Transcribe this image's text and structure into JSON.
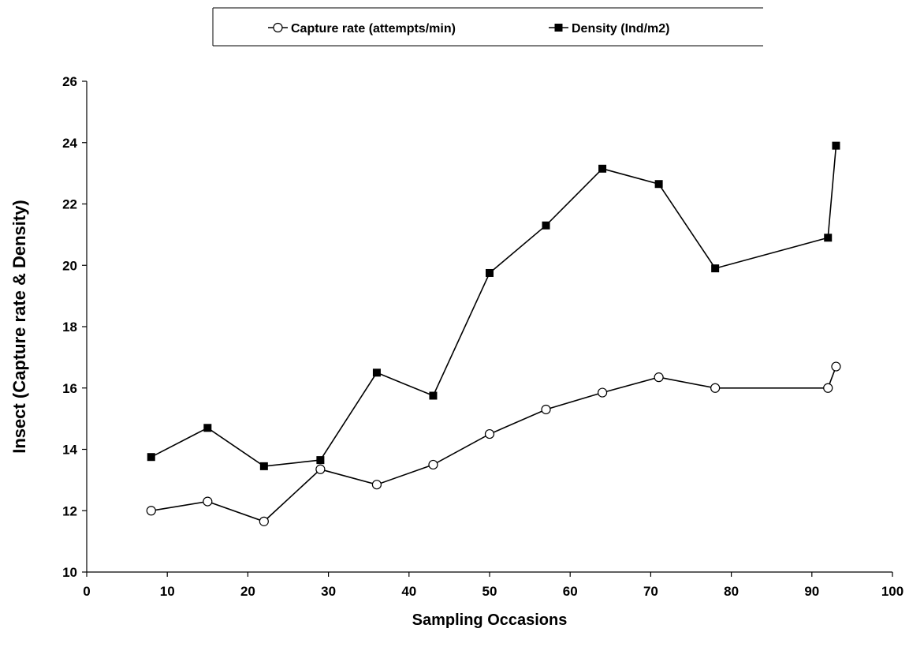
{
  "chart_data": {
    "type": "line",
    "title": "",
    "xlabel": "Sampling Occasions",
    "ylabel": "Insect (Capture rate & Density)",
    "xlim": [
      0,
      100
    ],
    "ylim": [
      10,
      26
    ],
    "xticks": [
      0,
      10,
      20,
      30,
      40,
      50,
      60,
      70,
      80,
      90,
      100
    ],
    "yticks": [
      10,
      12,
      14,
      16,
      18,
      20,
      22,
      24,
      26
    ],
    "grid": false,
    "legend_position": "top",
    "series": [
      {
        "name": "Capture rate (attempts/min)",
        "marker": "open-circle",
        "color": "#000000",
        "x": [
          8,
          15,
          22,
          29,
          36,
          43,
          50,
          57,
          64,
          71,
          78,
          92,
          93
        ],
        "y": [
          12.0,
          12.3,
          11.65,
          13.35,
          12.85,
          13.5,
          14.5,
          15.3,
          15.85,
          16.35,
          16.0,
          16.0,
          16.7
        ]
      },
      {
        "name": "Density (Ind/m2)",
        "marker": "filled-square",
        "color": "#000000",
        "x": [
          8,
          15,
          22,
          29,
          36,
          43,
          50,
          57,
          64,
          71,
          78,
          92,
          93
        ],
        "y": [
          13.75,
          14.7,
          13.45,
          13.65,
          16.5,
          15.75,
          19.75,
          21.3,
          23.15,
          22.65,
          19.9,
          20.9,
          23.9
        ]
      }
    ]
  }
}
